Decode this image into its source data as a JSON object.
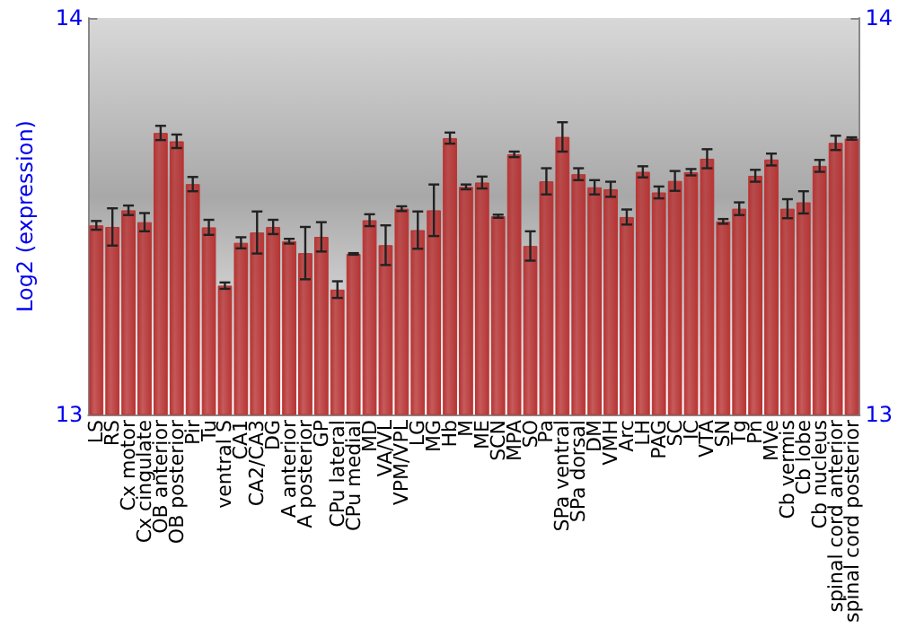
{
  "chart_data": {
    "type": "bar",
    "ylabel": "Log2 (expression)",
    "categories": [
      "LS",
      "RS",
      "Cx motor",
      "Cx cingulate",
      "OB anterior",
      "OB posterior",
      "Pir",
      "Tu",
      "ventral S",
      "CA1",
      "CA2/CA3",
      "DG",
      "A anterior",
      "A posterior",
      "GP",
      "CPu lateral",
      "CPu medial",
      "MD",
      "VA/VL",
      "VPM/VPL",
      "LG",
      "MG",
      "Hb",
      "M",
      "ME",
      "SCN",
      "MPA",
      "SO",
      "Pa",
      "SPa ventral",
      "SPa dorsal",
      "DM",
      "VMH",
      "Arc",
      "LH",
      "PAG",
      "SC",
      "IC",
      "VTA",
      "SN",
      "Tg",
      "Pn",
      "MVe",
      "Cb vermis",
      "Cb lobe",
      "Cb nucleus",
      "spinal cord anterior",
      "spinal cord posterior"
    ],
    "values": [
      13.477,
      13.473,
      13.515,
      13.485,
      13.71,
      13.689,
      13.581,
      13.472,
      13.325,
      13.433,
      13.459,
      13.473,
      13.437,
      13.407,
      13.448,
      13.315,
      13.405,
      13.49,
      13.427,
      13.519,
      13.465,
      13.515,
      13.697,
      13.574,
      13.585,
      13.5,
      13.656,
      13.425,
      13.588,
      13.7,
      13.606,
      13.573,
      13.568,
      13.498,
      13.612,
      13.56,
      13.589,
      13.611,
      13.645,
      13.487,
      13.519,
      13.602,
      13.643,
      13.519,
      13.535,
      13.627,
      13.685,
      13.696
    ],
    "errors": [
      0.011,
      0.047,
      0.012,
      0.023,
      0.018,
      0.017,
      0.018,
      0.019,
      0.008,
      0.014,
      0.053,
      0.018,
      0.006,
      0.066,
      0.037,
      0.021,
      0.002,
      0.015,
      0.05,
      0.006,
      0.047,
      0.065,
      0.014,
      0.006,
      0.015,
      0.004,
      0.007,
      0.037,
      0.033,
      0.037,
      0.015,
      0.018,
      0.019,
      0.019,
      0.014,
      0.015,
      0.025,
      0.008,
      0.024,
      0.006,
      0.016,
      0.015,
      0.015,
      0.024,
      0.028,
      0.015,
      0.018,
      0.003
    ],
    "color": "#b83434",
    "ylim": [
      13,
      14
    ],
    "yticks": [
      13,
      14
    ],
    "y2lim": [
      13,
      14
    ],
    "y2ticks": [
      13,
      14
    ]
  }
}
